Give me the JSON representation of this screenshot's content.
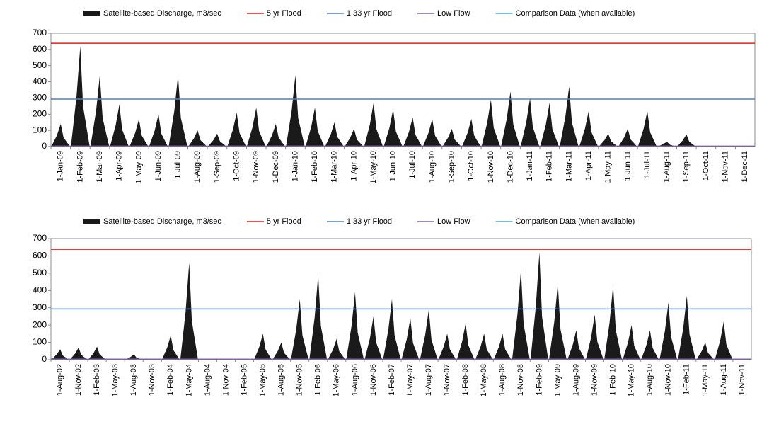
{
  "chart_data": [
    {
      "type": "spike-area",
      "categories": [
        "1-Jan-09",
        "1-Feb-09",
        "1-Mar-09",
        "1-Apr-09",
        "1-May-09",
        "1-Jun-09",
        "1-Jul-09",
        "1-Aug-09",
        "1-Sep-09",
        "1-Oct-09",
        "1-Nov-09",
        "1-Dec-09",
        "1-Jan-10",
        "1-Feb-10",
        "1-Mar-10",
        "1-Apr-10",
        "1-May-10",
        "1-Jun-10",
        "1-Jul-10",
        "1-Aug-10",
        "1-Sep-10",
        "1-Oct-10",
        "1-Nov-10",
        "1-Dec-10",
        "1-Jan-11",
        "1-Feb-11",
        "1-Mar-11",
        "1-Apr-11",
        "1-May-11",
        "1-Jun-11",
        "1-Jul-11",
        "1-Aug-11",
        "1-Sep-11",
        "1-Oct-11",
        "1-Nov-11",
        "1-Dec-11"
      ],
      "series": [
        {
          "name": "Satellite-based Discharge, m3/sec",
          "color": "#1a1a1a",
          "values": [
            140,
            620,
            440,
            260,
            170,
            200,
            440,
            100,
            80,
            210,
            240,
            140,
            440,
            240,
            150,
            110,
            270,
            230,
            180,
            170,
            110,
            170,
            290,
            340,
            300,
            270,
            370,
            220,
            80,
            110,
            220,
            30,
            75,
            0,
            0,
            0
          ]
        },
        {
          "name": "5 yr Flood",
          "color": "#e0201b",
          "value": 638
        },
        {
          "name": "1.33 yr Flood",
          "color": "#4f81bd",
          "value": 293
        },
        {
          "name": "Low Flow",
          "color": "#8064a2",
          "value": 3
        },
        {
          "name": "Comparison Data (when available)",
          "color": "#4bacc6"
        }
      ],
      "ylim": [
        0,
        700
      ],
      "yticks": [
        0,
        100,
        200,
        300,
        400,
        500,
        600,
        700
      ]
    },
    {
      "type": "spike-area",
      "categories": [
        "1-Aug-02",
        "1-Nov-02",
        "1-Feb-03",
        "1-May-03",
        "1-Aug-03",
        "1-Nov-03",
        "1-Feb-04",
        "1-May-04",
        "1-Aug-04",
        "1-Nov-04",
        "1-Feb-05",
        "1-May-05",
        "1-Aug-05",
        "1-Nov-05",
        "1-Feb-06",
        "1-May-06",
        "1-Aug-06",
        "1-Nov-06",
        "1-Feb-07",
        "1-May-07",
        "1-Aug-07",
        "1-Nov-07",
        "1-Feb-08",
        "1-May-08",
        "1-Aug-08",
        "1-Nov-08",
        "1-Feb-09",
        "1-May-09",
        "1-Aug-09",
        "1-Nov-09",
        "1-Feb-10",
        "1-May-10",
        "1-Aug-10",
        "1-Nov-10",
        "1-Feb-11",
        "1-May-11",
        "1-Aug-11",
        "1-Nov-11"
      ],
      "series": [
        {
          "name": "Satellite-based Discharge, m3/sec",
          "color": "#1a1a1a",
          "values": [
            60,
            70,
            75,
            5,
            30,
            5,
            140,
            560,
            5,
            5,
            5,
            150,
            100,
            350,
            490,
            120,
            390,
            250,
            350,
            240,
            290,
            150,
            210,
            150,
            150,
            520,
            620,
            440,
            170,
            260,
            430,
            200,
            170,
            330,
            370,
            100,
            220,
            0
          ]
        },
        {
          "name": "5 yr Flood",
          "color": "#e0201b",
          "value": 638
        },
        {
          "name": "1.33 yr Flood",
          "color": "#4f81bd",
          "value": 293
        },
        {
          "name": "Low Flow",
          "color": "#8064a2",
          "value": 3
        },
        {
          "name": "Comparison Data (when available)",
          "color": "#4bacc6"
        }
      ],
      "ylim": [
        0,
        700
      ],
      "yticks": [
        0,
        100,
        200,
        300,
        400,
        500,
        600,
        700
      ]
    }
  ]
}
